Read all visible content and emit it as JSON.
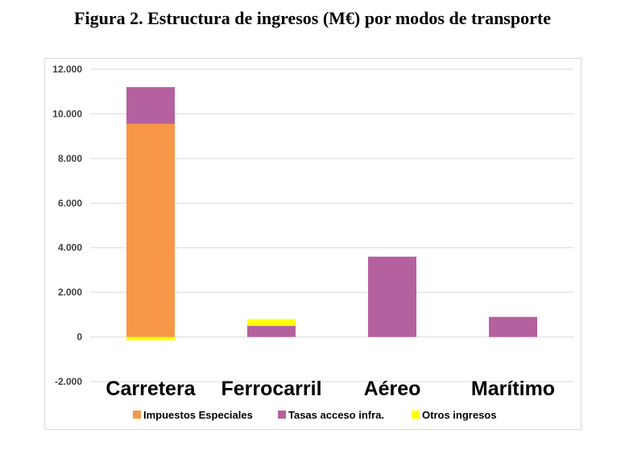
{
  "figure_title": "Figura 2. Estructura de ingresos (M€) por modos de transporte",
  "chart_data": {
    "type": "bar",
    "stacked": true,
    "categories": [
      "Carretera",
      "Ferrocarril",
      "Aéreo",
      "Marítimo"
    ],
    "series": [
      {
        "name": "Impuestos Especiales",
        "color": "#f79646",
        "values": [
          9550,
          0,
          0,
          0
        ]
      },
      {
        "name": "Tasas acceso infra.",
        "color": "#b5609f",
        "values": [
          1650,
          500,
          3600,
          900
        ]
      },
      {
        "name": "Otros ingresos",
        "color": "#ffff00",
        "values": [
          -150,
          300,
          0,
          0
        ]
      }
    ],
    "ylim": [
      -2000,
      12000
    ],
    "yticks": [
      "12.000",
      "10.000",
      "8.000",
      "6.000",
      "4.000",
      "2.000",
      "0",
      "-2.000"
    ],
    "ytick_values": [
      12000,
      10000,
      8000,
      6000,
      4000,
      2000,
      0,
      -2000
    ],
    "grid": true,
    "legend_position": "bottom"
  }
}
